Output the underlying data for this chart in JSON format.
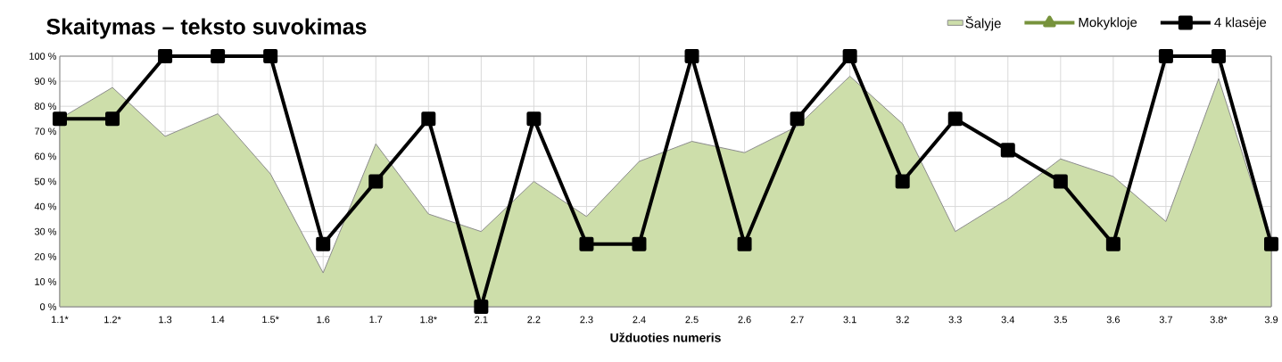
{
  "chart_data": {
    "type": "line",
    "title": "Skaitymas – teksto suvokimas",
    "xlabel": "Užduoties numeris",
    "categories": [
      "1.1*",
      "1.2*",
      "1.3",
      "1.4",
      "1.5*",
      "1.6",
      "1.7",
      "1.8*",
      "2.1",
      "2.2",
      "2.3",
      "2.4",
      "2.5",
      "2.6",
      "2.7",
      "3.1",
      "3.2",
      "3.3",
      "3.4",
      "3.5",
      "3.6",
      "3.7",
      "3.8*",
      "3.9"
    ],
    "series": [
      {
        "name": "Šalyje",
        "type": "area",
        "color": "#cddeaa",
        "values": [
          75,
          87.5,
          68,
          77,
          53,
          13.5,
          65,
          37,
          30,
          50,
          36,
          58,
          66,
          61.5,
          72,
          92,
          73,
          30,
          43,
          59,
          52,
          34,
          91,
          25
        ]
      },
      {
        "name": "Mokykloje",
        "color": "#77933c",
        "marker": "triangle",
        "values": [
          null,
          null,
          null,
          null,
          null,
          null,
          null,
          null,
          null,
          null,
          null,
          null,
          null,
          null,
          null,
          null,
          null,
          null,
          null,
          null,
          null,
          null,
          null,
          null
        ]
      },
      {
        "name": "4 klasėje",
        "color": "#000000",
        "marker": "square",
        "values": [
          75,
          75,
          100,
          100,
          100,
          25,
          50,
          75,
          0,
          75,
          25,
          25,
          100,
          25,
          75,
          100,
          50,
          75,
          62.5,
          50,
          25,
          100,
          100,
          25
        ]
      }
    ],
    "ylim": [
      0,
      100
    ],
    "yticks": [
      {
        "value": 0,
        "label": "0 %"
      },
      {
        "value": 10,
        "label": "10 %"
      },
      {
        "value": 20,
        "label": "20 %"
      },
      {
        "value": 30,
        "label": "30 %"
      },
      {
        "value": 40,
        "label": "40 %"
      },
      {
        "value": 50,
        "label": "50 %"
      },
      {
        "value": 60,
        "label": "60 %"
      },
      {
        "value": 70,
        "label": "70 %"
      },
      {
        "value": 80,
        "label": "80 %"
      },
      {
        "value": 90,
        "label": "90 %"
      },
      {
        "value": 100,
        "label": "100 %"
      }
    ],
    "grid": true,
    "legend": "top right"
  }
}
